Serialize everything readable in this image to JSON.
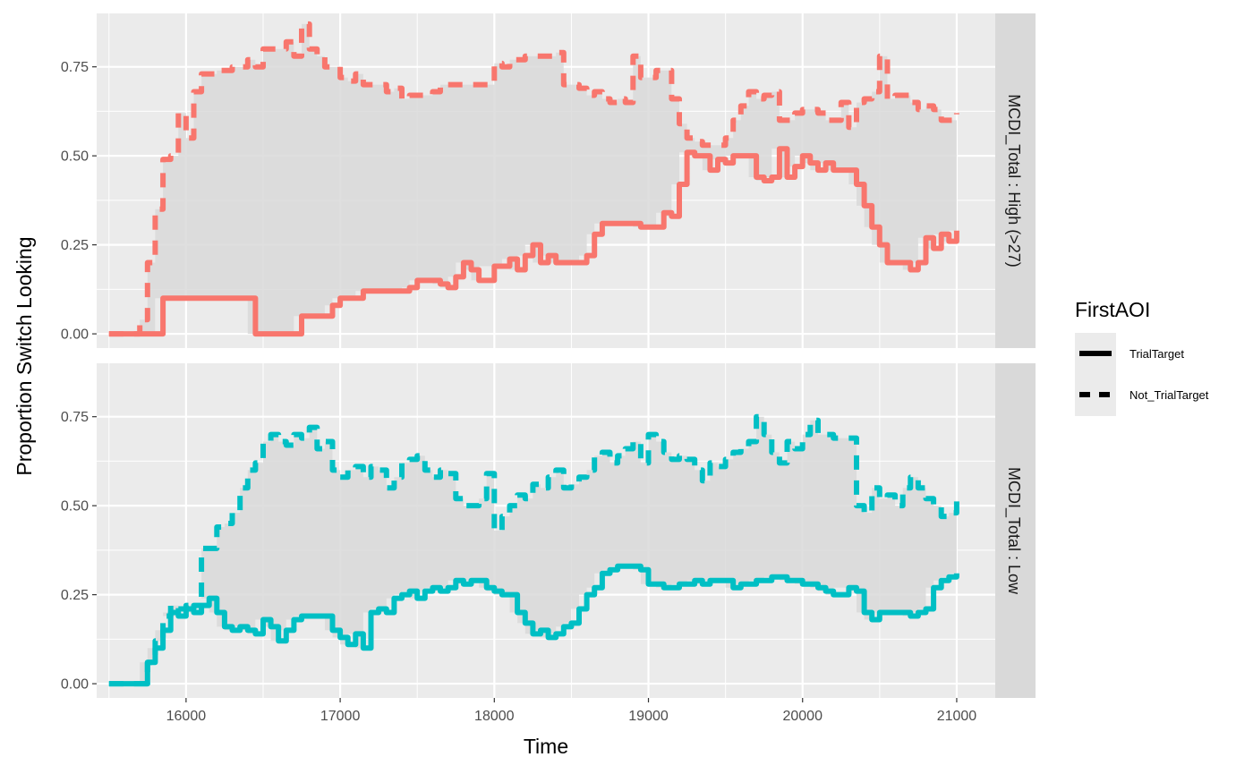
{
  "chart_data": {
    "type": "line",
    "xlabel": "Time",
    "ylabel": "Proportion Switch Looking",
    "xlim": [
      15420,
      21250
    ],
    "ylim": [
      -0.04,
      0.9
    ],
    "x_ticks": [
      16000,
      17000,
      18000,
      19000,
      20000,
      21000
    ],
    "y_ticks": [
      0.0,
      0.25,
      0.5,
      0.75
    ],
    "x_tick_labels": [
      "16000",
      "17000",
      "18000",
      "19000",
      "20000",
      "21000"
    ],
    "y_tick_labels": [
      "0.00",
      "0.25",
      "0.50",
      "0.75"
    ],
    "legend": {
      "title": "FirstAOI",
      "placement": "right",
      "entries": [
        "TrialTarget",
        "Not_TrialTarget"
      ]
    },
    "panels": [
      {
        "strip": "MCDI_Total : High (>27)",
        "color": "#F8766D",
        "series": [
          {
            "name": "TrialTarget",
            "linestyle": "solid",
            "x": [
              15500,
              15850,
              15850,
              16400,
              16450,
              16700,
              16750,
              16900,
              16950,
              17000,
              17150,
              17450,
              17500,
              17650,
              17700,
              17750,
              17800,
              17850,
              17900,
              18000,
              18100,
              18150,
              18200,
              18250,
              18300,
              18350,
              18400,
              18500,
              18600,
              18650,
              18700,
              18900,
              18950,
              19100,
              19150,
              19200,
              19250,
              19300,
              19400,
              19450,
              19500,
              19550,
              19650,
              19700,
              19750,
              19800,
              19850,
              19900,
              19950,
              20000,
              20050,
              20100,
              20150,
              20200,
              20350,
              20400,
              20450,
              20500,
              20550,
              20700,
              20750,
              20800,
              20850,
              20900,
              20950,
              21000
            ],
            "values": [
              0.0,
              0.0,
              0.1,
              0.1,
              0.0,
              0.0,
              0.05,
              0.05,
              0.08,
              0.1,
              0.12,
              0.13,
              0.15,
              0.14,
              0.13,
              0.16,
              0.2,
              0.18,
              0.15,
              0.19,
              0.21,
              0.18,
              0.22,
              0.25,
              0.2,
              0.22,
              0.2,
              0.2,
              0.22,
              0.28,
              0.31,
              0.31,
              0.3,
              0.34,
              0.33,
              0.42,
              0.51,
              0.5,
              0.46,
              0.49,
              0.48,
              0.5,
              0.5,
              0.44,
              0.43,
              0.44,
              0.52,
              0.44,
              0.47,
              0.5,
              0.48,
              0.46,
              0.48,
              0.46,
              0.42,
              0.36,
              0.3,
              0.25,
              0.2,
              0.18,
              0.2,
              0.27,
              0.24,
              0.28,
              0.26,
              0.29
            ]
          },
          {
            "name": "Not_TrialTarget",
            "linestyle": "dashed",
            "x": [
              15500,
              15700,
              15750,
              15800,
              15850,
              15900,
              15950,
              16000,
              16050,
              16100,
              16200,
              16300,
              16350,
              16400,
              16450,
              16500,
              16600,
              16650,
              16700,
              16750,
              16800,
              16850,
              16900,
              17000,
              17050,
              17100,
              17150,
              17200,
              17250,
              17300,
              17350,
              17400,
              17450,
              17500,
              17550,
              17600,
              17650,
              17700,
              17800,
              17900,
              18000,
              18050,
              18100,
              18200,
              18300,
              18400,
              18450,
              18500,
              18550,
              18600,
              18650,
              18700,
              18750,
              18800,
              18850,
              18900,
              18950,
              19050,
              19100,
              19150,
              19200,
              19250,
              19300,
              19350,
              19400,
              19450,
              19500,
              19550,
              19600,
              19650,
              19700,
              19750,
              19800,
              19850,
              19900,
              19950,
              20000,
              20050,
              20100,
              20150,
              20200,
              20250,
              20300,
              20350,
              20400,
              20450,
              20500,
              20550,
              20600,
              20650,
              20700,
              20750,
              20800,
              20850,
              20900,
              20950,
              21000
            ],
            "values": [
              0.0,
              0.04,
              0.2,
              0.35,
              0.49,
              0.5,
              0.62,
              0.55,
              0.68,
              0.73,
              0.74,
              0.75,
              0.75,
              0.77,
              0.75,
              0.8,
              0.8,
              0.82,
              0.78,
              0.87,
              0.8,
              0.78,
              0.75,
              0.72,
              0.71,
              0.73,
              0.7,
              0.7,
              0.7,
              0.68,
              0.69,
              0.66,
              0.67,
              0.67,
              0.67,
              0.68,
              0.7,
              0.7,
              0.7,
              0.7,
              0.76,
              0.75,
              0.77,
              0.78,
              0.78,
              0.79,
              0.7,
              0.7,
              0.69,
              0.67,
              0.68,
              0.66,
              0.65,
              0.66,
              0.65,
              0.78,
              0.72,
              0.74,
              0.74,
              0.66,
              0.59,
              0.55,
              0.54,
              0.53,
              0.53,
              0.53,
              0.55,
              0.6,
              0.64,
              0.68,
              0.66,
              0.67,
              0.68,
              0.6,
              0.6,
              0.62,
              0.63,
              0.63,
              0.62,
              0.6,
              0.6,
              0.65,
              0.58,
              0.65,
              0.66,
              0.68,
              0.78,
              0.66,
              0.67,
              0.67,
              0.65,
              0.63,
              0.64,
              0.63,
              0.6,
              0.6,
              0.62
            ]
          }
        ]
      },
      {
        "strip": "MCDI_Total : Low",
        "color": "#00BFC4",
        "series": [
          {
            "name": "TrialTarget",
            "linestyle": "solid",
            "x": [
              15500,
              15700,
              15750,
              15800,
              15850,
              15900,
              15950,
              16000,
              16050,
              16100,
              16150,
              16200,
              16250,
              16300,
              16350,
              16400,
              16450,
              16500,
              16550,
              16600,
              16650,
              16700,
              16750,
              16800,
              16850,
              16900,
              16950,
              17000,
              17050,
              17100,
              17150,
              17200,
              17250,
              17300,
              17350,
              17400,
              17450,
              17500,
              17550,
              17600,
              17650,
              17700,
              17750,
              17800,
              17850,
              17900,
              17950,
              18000,
              18050,
              18100,
              18150,
              18200,
              18250,
              18300,
              18350,
              18400,
              18450,
              18500,
              18550,
              18600,
              18650,
              18700,
              18750,
              18800,
              18850,
              18900,
              18950,
              19000,
              19100,
              19200,
              19300,
              19350,
              19400,
              19500,
              19550,
              19600,
              19700,
              19800,
              19850,
              19900,
              20000,
              20100,
              20150,
              20200,
              20300,
              20350,
              20400,
              20450,
              20500,
              20550,
              20600,
              20700,
              20750,
              20800,
              20850,
              20900,
              20950,
              21000
            ],
            "values": [
              0.0,
              0.0,
              0.06,
              0.1,
              0.15,
              0.2,
              0.19,
              0.21,
              0.22,
              0.22,
              0.24,
              0.2,
              0.16,
              0.15,
              0.16,
              0.15,
              0.14,
              0.18,
              0.16,
              0.12,
              0.15,
              0.18,
              0.19,
              0.19,
              0.19,
              0.19,
              0.15,
              0.13,
              0.11,
              0.14,
              0.1,
              0.2,
              0.21,
              0.2,
              0.24,
              0.25,
              0.26,
              0.24,
              0.26,
              0.27,
              0.26,
              0.27,
              0.29,
              0.28,
              0.29,
              0.29,
              0.27,
              0.26,
              0.25,
              0.25,
              0.2,
              0.17,
              0.14,
              0.15,
              0.13,
              0.14,
              0.16,
              0.17,
              0.21,
              0.25,
              0.27,
              0.31,
              0.32,
              0.33,
              0.33,
              0.33,
              0.32,
              0.28,
              0.27,
              0.28,
              0.29,
              0.28,
              0.29,
              0.29,
              0.27,
              0.28,
              0.29,
              0.3,
              0.3,
              0.29,
              0.28,
              0.27,
              0.26,
              0.25,
              0.27,
              0.26,
              0.2,
              0.18,
              0.2,
              0.2,
              0.2,
              0.19,
              0.2,
              0.21,
              0.27,
              0.29,
              0.3,
              0.31
            ]
          },
          {
            "name": "Not_TrialTarget",
            "linestyle": "dashed",
            "x": [
              15500,
              15700,
              15750,
              15800,
              15850,
              15900,
              15950,
              16000,
              16050,
              16100,
              16200,
              16250,
              16300,
              16350,
              16400,
              16450,
              16500,
              16550,
              16600,
              16650,
              16700,
              16750,
              16800,
              16850,
              16900,
              16950,
              17000,
              17050,
              17100,
              17150,
              17200,
              17250,
              17300,
              17350,
              17400,
              17450,
              17500,
              17550,
              17600,
              17650,
              17700,
              17750,
              17800,
              17850,
              17900,
              17950,
              18000,
              18050,
              18100,
              18150,
              18200,
              18250,
              18300,
              18350,
              18400,
              18450,
              18500,
              18550,
              18600,
              18650,
              18700,
              18750,
              18800,
              18850,
              18900,
              18950,
              19000,
              19050,
              19100,
              19150,
              19200,
              19250,
              19300,
              19350,
              19400,
              19450,
              19500,
              19550,
              19600,
              19650,
              19700,
              19750,
              19800,
              19850,
              19900,
              19950,
              20000,
              20050,
              20100,
              20150,
              20200,
              20300,
              20350,
              20400,
              20450,
              20500,
              20550,
              20600,
              20650,
              20700,
              20750,
              20800,
              20850,
              20900,
              20950,
              21000
            ],
            "values": [
              0.0,
              0.0,
              0.06,
              0.12,
              0.19,
              0.22,
              0.21,
              0.22,
              0.2,
              0.38,
              0.44,
              0.45,
              0.48,
              0.55,
              0.6,
              0.62,
              0.68,
              0.7,
              0.68,
              0.67,
              0.7,
              0.69,
              0.72,
              0.66,
              0.68,
              0.6,
              0.58,
              0.6,
              0.61,
              0.58,
              0.61,
              0.6,
              0.55,
              0.58,
              0.62,
              0.63,
              0.64,
              0.6,
              0.58,
              0.6,
              0.59,
              0.52,
              0.5,
              0.5,
              0.52,
              0.59,
              0.43,
              0.47,
              0.5,
              0.53,
              0.52,
              0.56,
              0.55,
              0.58,
              0.6,
              0.55,
              0.56,
              0.58,
              0.6,
              0.64,
              0.65,
              0.62,
              0.64,
              0.66,
              0.68,
              0.62,
              0.7,
              0.68,
              0.65,
              0.63,
              0.64,
              0.63,
              0.6,
              0.57,
              0.62,
              0.61,
              0.63,
              0.65,
              0.66,
              0.68,
              0.75,
              0.7,
              0.65,
              0.62,
              0.68,
              0.66,
              0.7,
              0.74,
              0.7,
              0.7,
              0.69,
              0.69,
              0.5,
              0.48,
              0.55,
              0.52,
              0.53,
              0.5,
              0.55,
              0.58,
              0.55,
              0.52,
              0.5,
              0.47,
              0.48,
              0.53
            ]
          }
        ]
      }
    ]
  }
}
